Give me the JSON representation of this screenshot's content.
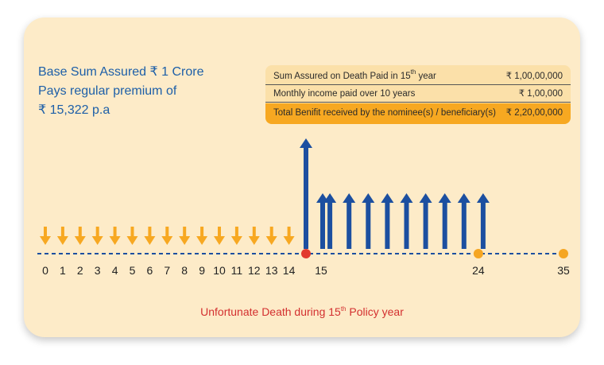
{
  "intro": {
    "line1": "Base Sum Assured ₹ 1 Crore",
    "line2": "Pays regular premium of",
    "line3": "₹ 15,322 p.a"
  },
  "benefits_table": [
    {
      "label_pre": "Sum Assured on Death Paid in 15",
      "label_sup": "th",
      "label_post": " year",
      "value": "₹ 1,00,00,000"
    },
    {
      "label_pre": "Monthly income paid over 10 years",
      "label_sup": "",
      "label_post": "",
      "value": "₹ 1,00,000"
    },
    {
      "label_pre": "Total Benifit received by the nominee(s) / beneficiary(s)",
      "label_sup": "",
      "label_post": "",
      "value": "₹ 2,20,00,000"
    }
  ],
  "timeline": {
    "premium_years": [
      "0",
      "1",
      "2",
      "3",
      "4",
      "5",
      "6",
      "7",
      "8",
      "9",
      "10",
      "11",
      "12",
      "13",
      "14"
    ],
    "labels": [
      "0",
      "1",
      "2",
      "3",
      "4",
      "5",
      "6",
      "7",
      "8",
      "9",
      "10",
      "11",
      "12",
      "13",
      "14",
      "15",
      "24",
      "35"
    ],
    "death_year": 15,
    "income_years": [
      15,
      16,
      17,
      18,
      19,
      20,
      21,
      22,
      23,
      24
    ],
    "income_end_year": 24,
    "policy_end_year": 35
  },
  "caption": {
    "pre": "Unfortunate Death during 15",
    "sup": "th",
    "post": " Policy year"
  },
  "colors": {
    "premium_arrow": "#f7a821",
    "benefit_arrow": "#1c4fa0",
    "death_marker": "#e23a2e",
    "milestone_marker": "#f5a623",
    "intro_text": "#1d5fa8",
    "caption_text": "#d32f2f"
  }
}
